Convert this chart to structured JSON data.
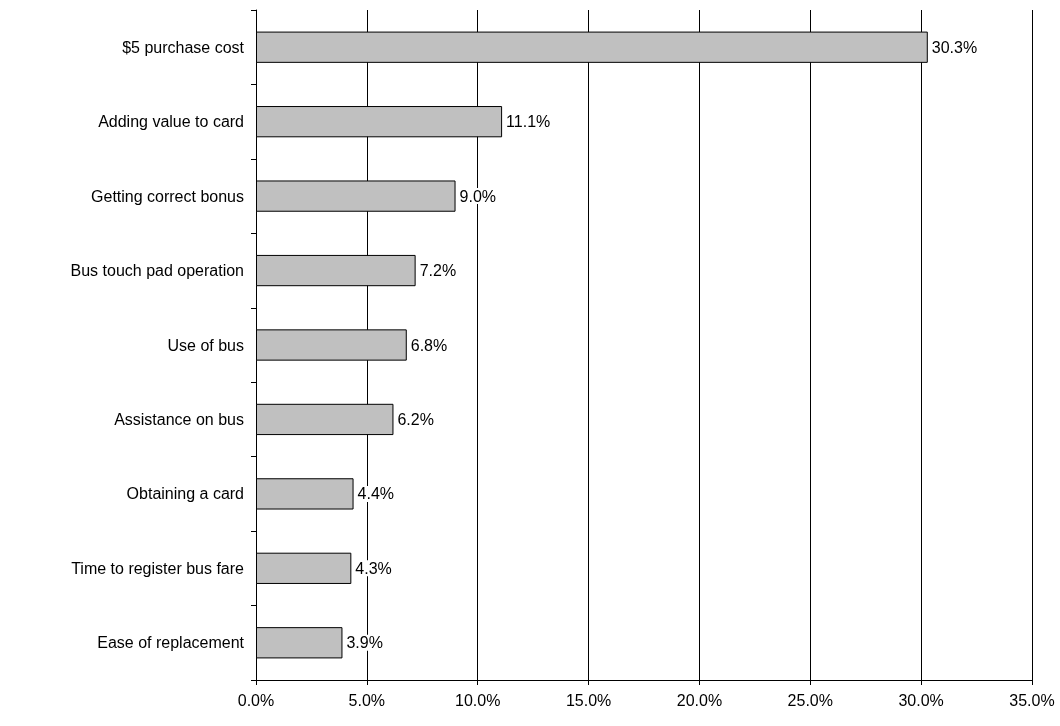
{
  "chart_data": {
    "type": "bar",
    "orientation": "horizontal",
    "categories": [
      "$5 purchase cost",
      "Adding value to card",
      "Getting correct bonus",
      "Bus touch pad operation",
      "Use of bus",
      "Assistance on bus",
      "Obtaining a card",
      "Time to register bus fare",
      "Ease of replacement"
    ],
    "values": [
      30.3,
      11.1,
      9.0,
      7.2,
      6.8,
      6.2,
      4.4,
      4.3,
      3.9
    ],
    "value_labels": [
      "30.3%",
      "11.1%",
      "9.0%",
      "7.2%",
      "6.8%",
      "6.2%",
      "4.4%",
      "4.3%",
      "3.9%"
    ],
    "color": "#c0c0c0",
    "xlim": [
      0,
      35
    ],
    "xticks": [
      {
        "value": 0,
        "label": "0.0%"
      },
      {
        "value": 5,
        "label": "5.0%"
      },
      {
        "value": 10,
        "label": "10.0%"
      },
      {
        "value": 15,
        "label": "15.0%"
      },
      {
        "value": 20,
        "label": "20.0%"
      },
      {
        "value": 25,
        "label": "25.0%"
      },
      {
        "value": 30,
        "label": "30.0%"
      },
      {
        "value": 35,
        "label": "35.0%"
      }
    ],
    "grid": "x"
  }
}
